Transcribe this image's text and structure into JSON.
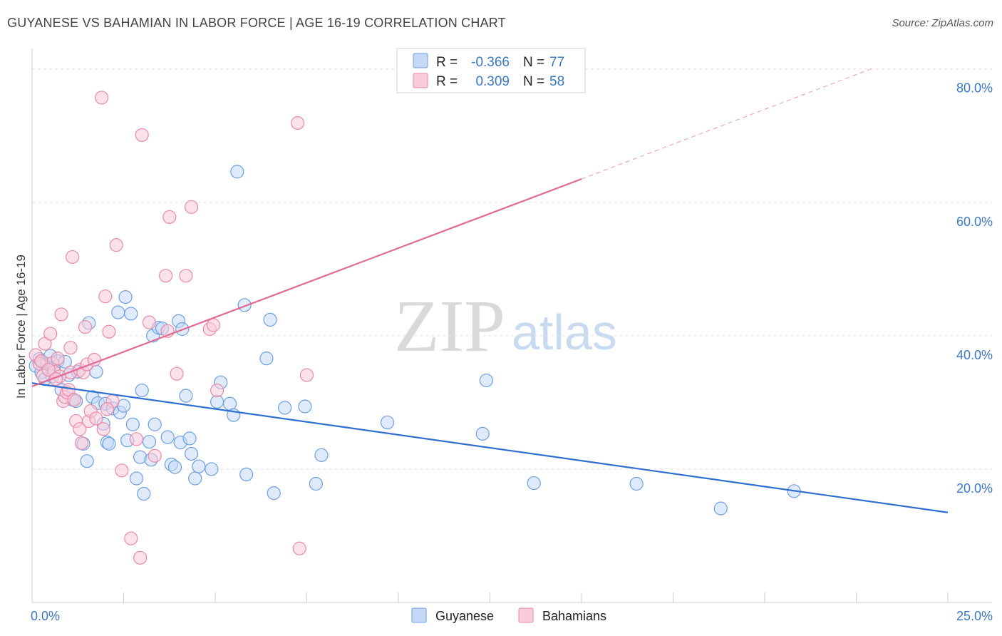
{
  "header": {
    "title": "GUYANESE VS BAHAMIAN IN LABOR FORCE | AGE 16-19 CORRELATION CHART",
    "source": "Source: ZipAtlas.com"
  },
  "legend": {
    "r_label": "R =",
    "n_label": "N =",
    "rows": [
      {
        "r": "-0.366",
        "n": "77",
        "color": "#6f9fe0",
        "fill": "#c5d8f5"
      },
      {
        "r": "0.309",
        "n": "58",
        "color": "#e88aa8",
        "fill": "#f8cbd8"
      }
    ]
  },
  "watermark": {
    "zip": "ZIP",
    "atlas": "atlas"
  },
  "chart_data": {
    "type": "scatter",
    "title": "GUYANESE VS BAHAMIAN IN LABOR FORCE | AGE 16-19 CORRELATION CHART",
    "ylabel": "In Labor Force | Age 16-19",
    "xlabel": "",
    "xlim": [
      0,
      25
    ],
    "ylim": [
      0,
      82
    ],
    "x_tick_labels": [
      "0.0%",
      "25.0%"
    ],
    "y_tick_labels": [
      "20.0%",
      "40.0%",
      "60.0%",
      "80.0%"
    ],
    "y_ticks": [
      20,
      40,
      60,
      80
    ],
    "grid": true,
    "legend_position": "top-center",
    "series": [
      {
        "name": "Guyanese",
        "color": "#6f9fe0",
        "fill": "#c5d8f5",
        "trend": {
          "x0": 0.0,
          "y0": 32.9,
          "x1": 25.0,
          "y1": 13.5,
          "style": "solid",
          "color": "#2f6fcf"
        },
        "points": [
          [
            0.1,
            35.5
          ],
          [
            0.2,
            36.5
          ],
          [
            0.25,
            34.5
          ],
          [
            0.3,
            36.0
          ],
          [
            0.35,
            33.5
          ],
          [
            0.4,
            35.8
          ],
          [
            0.5,
            37.0
          ],
          [
            0.55,
            33.9
          ],
          [
            0.6,
            35.0
          ],
          [
            0.7,
            36.2
          ],
          [
            0.8,
            31.9
          ],
          [
            0.9,
            36.1
          ],
          [
            1.0,
            34.1
          ],
          [
            1.1,
            30.4
          ],
          [
            1.2,
            30.2
          ],
          [
            1.25,
            34.6
          ],
          [
            1.4,
            23.8
          ],
          [
            1.5,
            21.2
          ],
          [
            1.55,
            41.9
          ],
          [
            1.65,
            30.8
          ],
          [
            1.75,
            34.6
          ],
          [
            1.8,
            29.9
          ],
          [
            1.95,
            26.8
          ],
          [
            2.0,
            29.8
          ],
          [
            2.05,
            24.0
          ],
          [
            2.1,
            23.8
          ],
          [
            2.2,
            29.1
          ],
          [
            2.35,
            43.5
          ],
          [
            2.4,
            28.5
          ],
          [
            2.5,
            29.5
          ],
          [
            2.55,
            45.8
          ],
          [
            2.6,
            24.3
          ],
          [
            2.7,
            43.3
          ],
          [
            2.75,
            26.7
          ],
          [
            2.85,
            18.6
          ],
          [
            2.95,
            21.8
          ],
          [
            3.0,
            31.8
          ],
          [
            3.05,
            16.3
          ],
          [
            3.2,
            24.1
          ],
          [
            3.25,
            21.4
          ],
          [
            3.3,
            40.0
          ],
          [
            3.35,
            26.7
          ],
          [
            3.45,
            41.2
          ],
          [
            3.55,
            41.1
          ],
          [
            3.7,
            24.8
          ],
          [
            3.8,
            20.7
          ],
          [
            3.9,
            20.3
          ],
          [
            4.0,
            42.2
          ],
          [
            4.05,
            24.0
          ],
          [
            4.1,
            41.0
          ],
          [
            4.2,
            31.0
          ],
          [
            4.3,
            24.6
          ],
          [
            4.35,
            22.3
          ],
          [
            4.45,
            18.6
          ],
          [
            4.55,
            20.4
          ],
          [
            4.9,
            20.0
          ],
          [
            5.05,
            30.1
          ],
          [
            5.15,
            33.0
          ],
          [
            5.4,
            29.8
          ],
          [
            5.5,
            28.1
          ],
          [
            5.6,
            64.6
          ],
          [
            5.8,
            44.6
          ],
          [
            5.85,
            19.2
          ],
          [
            6.4,
            36.6
          ],
          [
            6.5,
            42.4
          ],
          [
            6.6,
            16.4
          ],
          [
            6.9,
            29.2
          ],
          [
            7.45,
            29.4
          ],
          [
            7.75,
            17.8
          ],
          [
            7.9,
            22.1
          ],
          [
            9.7,
            27.0
          ],
          [
            12.3,
            25.3
          ],
          [
            12.4,
            33.3
          ],
          [
            13.7,
            17.9
          ],
          [
            16.5,
            17.8
          ],
          [
            18.8,
            14.1
          ],
          [
            20.8,
            16.7
          ]
        ]
      },
      {
        "name": "Bahamians",
        "color": "#e88aa8",
        "fill": "#f8cbd8",
        "trend": {
          "x0": 0.0,
          "y0": 32.4,
          "x1": 15.0,
          "y1": 63.5,
          "style": "solid",
          "color": "#e06a93",
          "ext_x1": 23.0,
          "ext_y1": 80.2
        },
        "points": [
          [
            0.1,
            37.1
          ],
          [
            0.2,
            35.8
          ],
          [
            0.3,
            34.0
          ],
          [
            0.35,
            38.8
          ],
          [
            0.5,
            40.3
          ],
          [
            0.55,
            35.9
          ],
          [
            0.6,
            34.6
          ],
          [
            0.7,
            36.6
          ],
          [
            0.75,
            33.9
          ],
          [
            0.8,
            43.2
          ],
          [
            0.85,
            30.2
          ],
          [
            0.9,
            30.8
          ],
          [
            0.95,
            31.5
          ],
          [
            1.0,
            31.9
          ],
          [
            1.05,
            34.5
          ],
          [
            1.15,
            30.4
          ],
          [
            1.1,
            51.8
          ],
          [
            1.2,
            27.2
          ],
          [
            1.3,
            26.0
          ],
          [
            1.35,
            23.9
          ],
          [
            1.3,
            34.9
          ],
          [
            1.4,
            34.5
          ],
          [
            1.45,
            41.3
          ],
          [
            1.5,
            35.7
          ],
          [
            1.55,
            27.2
          ],
          [
            1.6,
            28.7
          ],
          [
            1.7,
            36.4
          ],
          [
            1.75,
            27.6
          ],
          [
            1.9,
            75.7
          ],
          [
            1.95,
            26.0
          ],
          [
            2.0,
            45.9
          ],
          [
            2.1,
            40.6
          ],
          [
            2.2,
            30.2
          ],
          [
            2.3,
            53.6
          ],
          [
            2.45,
            19.8
          ],
          [
            2.7,
            9.6
          ],
          [
            2.85,
            24.5
          ],
          [
            2.95,
            6.7
          ],
          [
            3.0,
            70.1
          ],
          [
            3.2,
            42.0
          ],
          [
            3.35,
            22.0
          ],
          [
            3.7,
            40.7
          ],
          [
            3.75,
            57.8
          ],
          [
            3.65,
            49.0
          ],
          [
            3.95,
            34.3
          ],
          [
            4.2,
            49.0
          ],
          [
            4.35,
            59.3
          ],
          [
            4.85,
            41.0
          ],
          [
            4.95,
            41.6
          ],
          [
            5.05,
            31.8
          ],
          [
            7.25,
            71.9
          ],
          [
            7.3,
            8.1
          ],
          [
            7.5,
            34.1
          ],
          [
            0.25,
            36.2
          ],
          [
            0.45,
            34.9
          ],
          [
            0.65,
            33.5
          ],
          [
            1.05,
            38.2
          ],
          [
            2.05,
            29.0
          ]
        ]
      }
    ]
  },
  "bottom_legend": [
    {
      "label": "Guyanese",
      "fill": "#c5d8f5",
      "stroke": "#6f9fe0"
    },
    {
      "label": "Bahamians",
      "fill": "#f8cbd8",
      "stroke": "#e88aa8"
    }
  ]
}
